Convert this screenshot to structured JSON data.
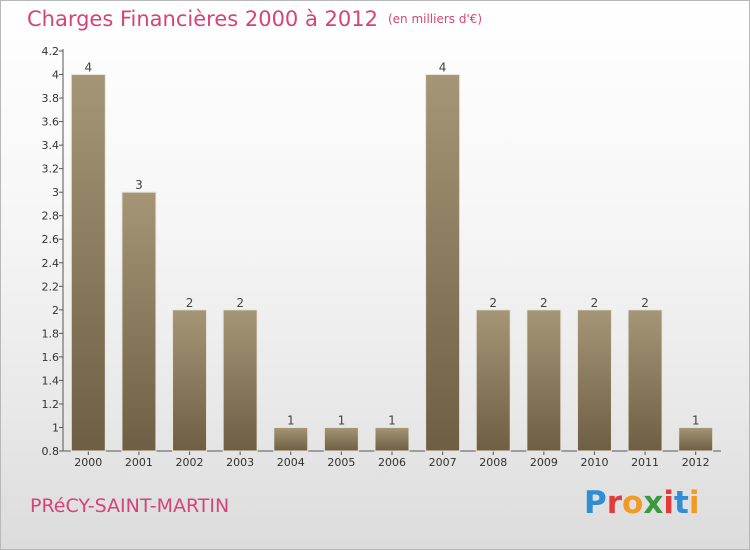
{
  "header": {
    "title": "Charges Financières 2000 à 2012",
    "unit_note": "(en milliers d'€)"
  },
  "footer": {
    "commune": "PRéCY-SAINT-MARTIN",
    "brand_letters": [
      "P",
      "r",
      "o",
      "x",
      "i",
      "t",
      "i"
    ]
  },
  "colors": {
    "title": "#d4447a",
    "bar_light": "#a59677",
    "bar_dark": "#6e5f44",
    "axis": "#555555",
    "brand": [
      "#2f8ed6",
      "#e23a3a",
      "#f29a22",
      "#3a9a3e",
      "#e23a3a",
      "#2f8ed6",
      "#f29a22"
    ]
  },
  "chart_data": {
    "type": "bar",
    "categories": [
      "2000",
      "2001",
      "2002",
      "2003",
      "2004",
      "2005",
      "2006",
      "2007",
      "2008",
      "2009",
      "2010",
      "2011",
      "2012"
    ],
    "values": [
      4,
      3,
      2,
      2,
      1,
      1,
      1,
      4,
      2,
      2,
      2,
      2,
      1
    ],
    "data_labels": [
      "4",
      "3",
      "2",
      "2",
      "1",
      "1",
      "1",
      "4",
      "2",
      "2",
      "2",
      "2",
      "1"
    ],
    "title": "Charges Financières 2000 à 2012",
    "ylim": [
      0.8,
      4.2
    ],
    "yticks": [
      "0.8",
      "1",
      "1.2",
      "1.4",
      "1.6",
      "1.8",
      "2",
      "2.2",
      "2.4",
      "2.6",
      "2.8",
      "3",
      "3.2",
      "3.4",
      "3.6",
      "3.8",
      "4",
      "4.2"
    ],
    "ytick_values": [
      0.8,
      1,
      1.2,
      1.4,
      1.6,
      1.8,
      2,
      2.2,
      2.4,
      2.6,
      2.8,
      3,
      3.2,
      3.4,
      3.6,
      3.8,
      4,
      4.2
    ],
    "grid": false,
    "legend": "none"
  }
}
